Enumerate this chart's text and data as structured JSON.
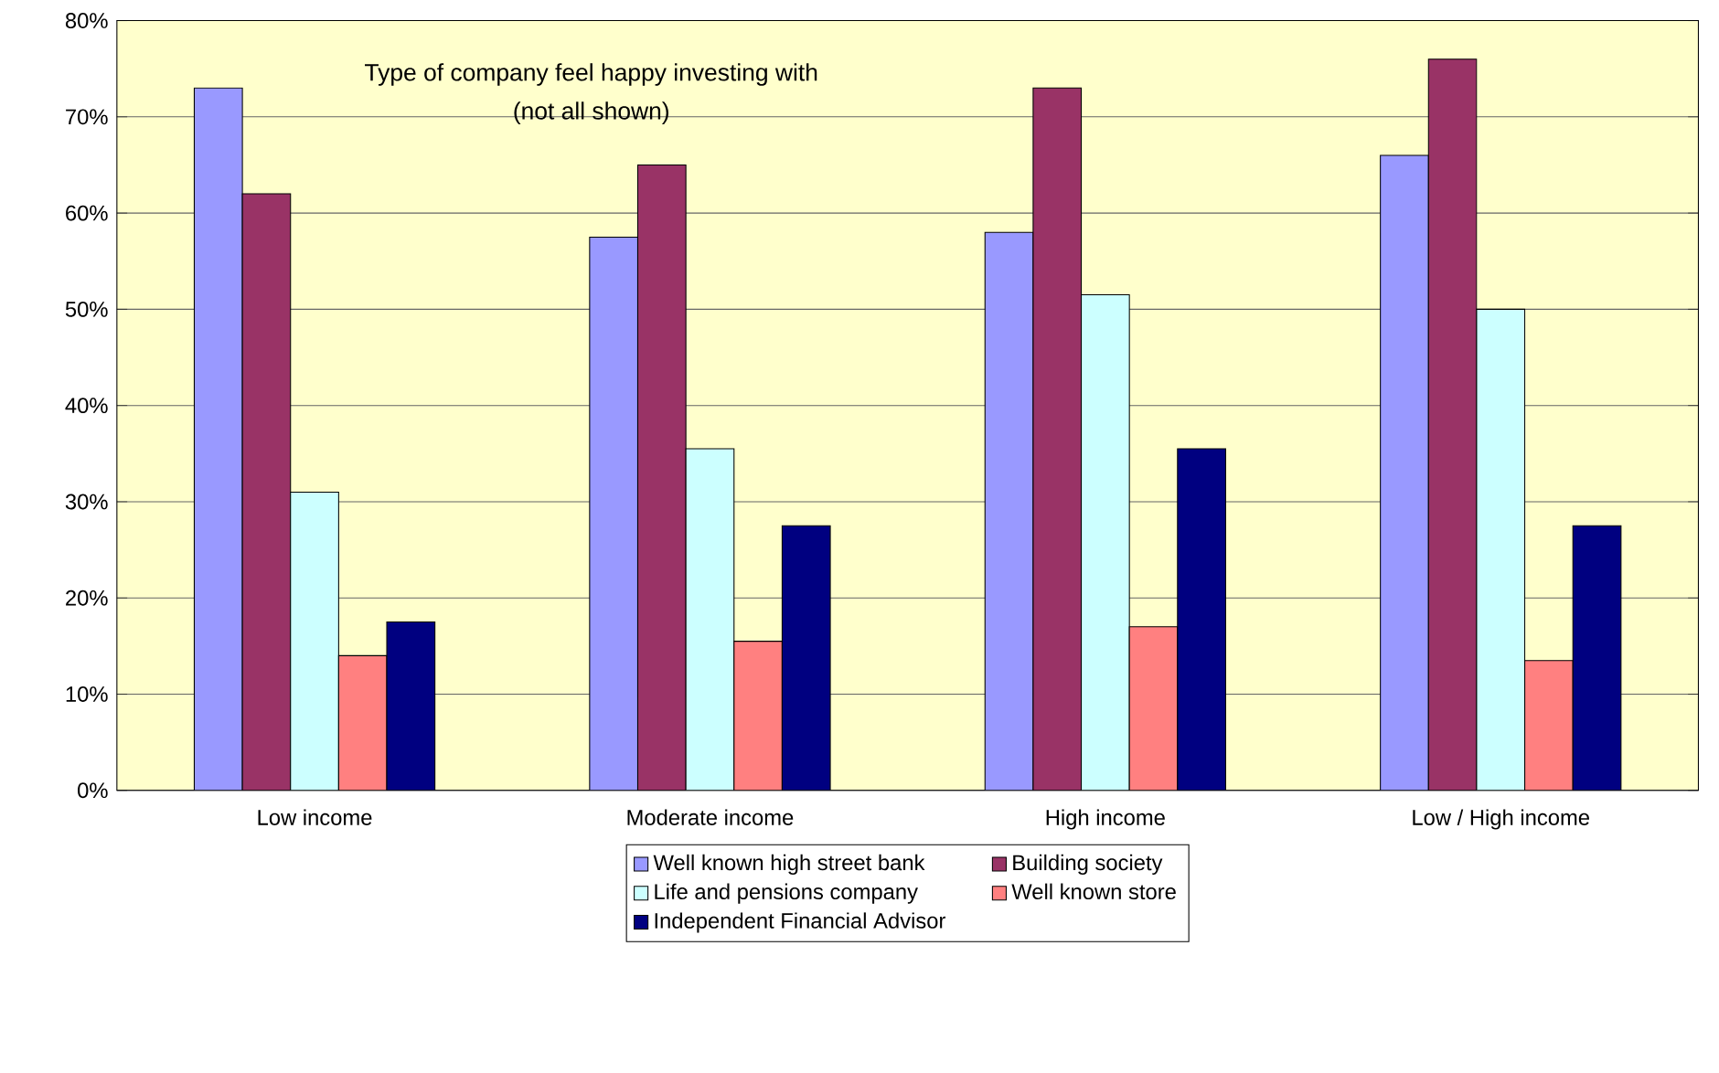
{
  "chart_data": {
    "type": "bar",
    "title": "Type of company feel happy investing with",
    "subtitle": "(not all shown)",
    "categories": [
      "Low income",
      "Moderate income",
      "High income",
      "Low / High income"
    ],
    "series": [
      {
        "name": "Well known high street bank",
        "color": "#9999ff",
        "values": [
          73,
          57.5,
          58,
          66
        ]
      },
      {
        "name": "Building society",
        "color": "#993366",
        "values": [
          62,
          65,
          73,
          76
        ]
      },
      {
        "name": "Life and pensions company",
        "color": "#ccffff",
        "values": [
          31,
          35.5,
          51.5,
          50
        ]
      },
      {
        "name": "Well known store",
        "color": "#ff8080",
        "values": [
          14,
          15.5,
          17,
          13.5
        ]
      },
      {
        "name": "Independent Financial Advisor",
        "color": "#000080",
        "values": [
          17.5,
          27.5,
          35.5,
          27.5
        ]
      }
    ],
    "ylim": [
      0,
      80
    ],
    "yticks": [
      {
        "value": 0,
        "label": "0%"
      },
      {
        "value": 10,
        "label": "10%"
      },
      {
        "value": 20,
        "label": "20%"
      },
      {
        "value": 30,
        "label": "30%"
      },
      {
        "value": 40,
        "label": "40%"
      },
      {
        "value": 50,
        "label": "50%"
      },
      {
        "value": 60,
        "label": "60%"
      },
      {
        "value": 70,
        "label": "70%"
      },
      {
        "value": 80,
        "label": "80%"
      }
    ],
    "grid": "y",
    "legend": "bottom"
  }
}
